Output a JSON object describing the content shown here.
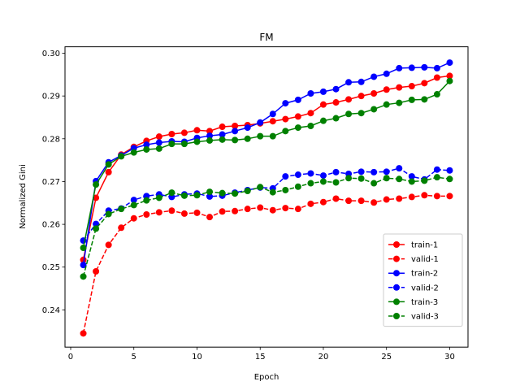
{
  "chart_data": {
    "type": "line",
    "title": "FM",
    "xlabel": "Epoch",
    "ylabel": "Normalized Gini",
    "xlim": [
      -0.45,
      31.45
    ],
    "ylim": [
      0.2313,
      0.3015
    ],
    "xticks": [
      0,
      5,
      10,
      15,
      20,
      25,
      30
    ],
    "yticks": [
      0.24,
      0.25,
      0.26,
      0.27,
      0.28,
      0.29,
      0.3
    ],
    "ytick_labels": [
      "0.24",
      "0.25",
      "0.26",
      "0.27",
      "0.28",
      "0.29",
      "0.30"
    ],
    "grid": false,
    "legend": "bottom-right",
    "x": [
      1,
      2,
      3,
      4,
      5,
      6,
      7,
      8,
      9,
      10,
      11,
      12,
      13,
      14,
      15,
      16,
      17,
      18,
      19,
      20,
      21,
      22,
      23,
      24,
      25,
      26,
      27,
      28,
      29,
      30
    ],
    "series": [
      {
        "name": "train-1",
        "color": "#ff0000",
        "dash": false,
        "values": [
          0.2517,
          0.2662,
          0.2722,
          0.2763,
          0.2781,
          0.2795,
          0.2805,
          0.2811,
          0.2814,
          0.282,
          0.2818,
          0.2828,
          0.283,
          0.2832,
          0.2836,
          0.2841,
          0.2846,
          0.2852,
          0.286,
          0.288,
          0.2885,
          0.2892,
          0.29,
          0.2906,
          0.2915,
          0.292,
          0.2923,
          0.293,
          0.2943,
          0.2947
        ]
      },
      {
        "name": "valid-1",
        "color": "#ff0000",
        "dash": true,
        "values": [
          0.2345,
          0.249,
          0.2552,
          0.2592,
          0.2614,
          0.2623,
          0.2628,
          0.2632,
          0.2625,
          0.2627,
          0.2617,
          0.263,
          0.2631,
          0.2636,
          0.2639,
          0.2633,
          0.2638,
          0.2636,
          0.2648,
          0.2652,
          0.266,
          0.2655,
          0.2655,
          0.2651,
          0.2658,
          0.266,
          0.2664,
          0.2668,
          0.2666,
          0.2666
        ]
      },
      {
        "name": "train-2",
        "color": "#0000ff",
        "dash": false,
        "values": [
          0.2505,
          0.2701,
          0.2745,
          0.2761,
          0.2778,
          0.2786,
          0.2791,
          0.2794,
          0.2793,
          0.2802,
          0.2807,
          0.281,
          0.2818,
          0.2826,
          0.2838,
          0.2858,
          0.2883,
          0.2891,
          0.2906,
          0.291,
          0.2916,
          0.2932,
          0.2933,
          0.2945,
          0.2952,
          0.2965,
          0.2966,
          0.2967,
          0.2965,
          0.2978
        ]
      },
      {
        "name": "valid-2",
        "color": "#0000ff",
        "dash": true,
        "values": [
          0.2562,
          0.2601,
          0.2632,
          0.2637,
          0.2657,
          0.2666,
          0.267,
          0.2664,
          0.267,
          0.2672,
          0.2665,
          0.2667,
          0.2674,
          0.268,
          0.2686,
          0.2684,
          0.2712,
          0.2716,
          0.2719,
          0.2714,
          0.2722,
          0.2718,
          0.2723,
          0.2722,
          0.2723,
          0.2731,
          0.2712,
          0.2705,
          0.2728,
          0.2726
        ]
      },
      {
        "name": "train-3",
        "color": "#008000",
        "dash": false,
        "values": [
          0.2545,
          0.2693,
          0.274,
          0.2759,
          0.2768,
          0.2775,
          0.2777,
          0.2788,
          0.2788,
          0.2793,
          0.2796,
          0.2798,
          0.2797,
          0.28,
          0.2806,
          0.2806,
          0.2818,
          0.2826,
          0.283,
          0.2842,
          0.2848,
          0.2858,
          0.286,
          0.2869,
          0.288,
          0.2884,
          0.2891,
          0.2892,
          0.2904,
          0.2935
        ]
      },
      {
        "name": "valid-3",
        "color": "#008000",
        "dash": true,
        "values": [
          0.2478,
          0.259,
          0.2624,
          0.2636,
          0.2645,
          0.2656,
          0.2662,
          0.2674,
          0.2667,
          0.2668,
          0.2676,
          0.2673,
          0.2672,
          0.2678,
          0.2687,
          0.2675,
          0.268,
          0.2688,
          0.2696,
          0.27,
          0.2698,
          0.2708,
          0.2707,
          0.2696,
          0.2708,
          0.2706,
          0.27,
          0.2702,
          0.271,
          0.2706
        ]
      }
    ]
  }
}
